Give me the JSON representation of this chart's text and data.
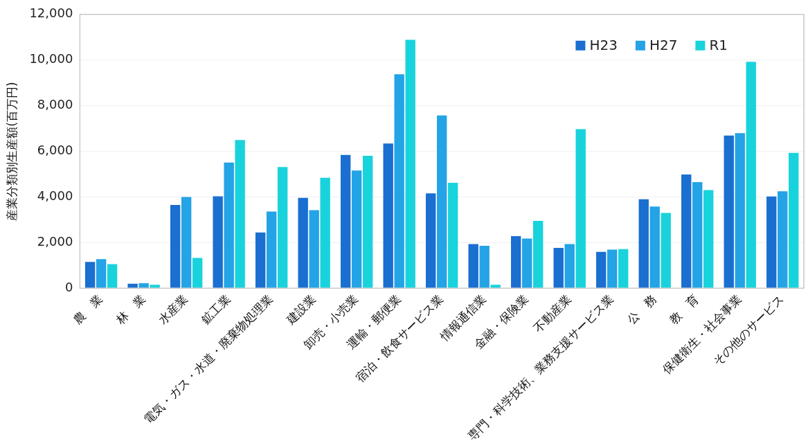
{
  "chart_data": {
    "type": "bar",
    "ylabel": "産業分類別生産額(百万円)",
    "categories": [
      "農　業",
      "林　業",
      "水産業",
      "鉱工業",
      "電気・ガス・水道・廃棄物処理業",
      "建設業",
      "卸売・小売業",
      "運輸・郵便業",
      "宿泊・飲食サービス業",
      "情報通信業",
      "金融・保険業",
      "不動産業",
      "専門・科学技術、業務支援サービス業",
      "公　務",
      "教　育",
      "保健衛生・社会事業",
      "その他のサービス"
    ],
    "series": [
      {
        "name": "H23",
        "color": "#1a6fd0",
        "values": [
          1150,
          200,
          3650,
          4030,
          2440,
          3960,
          5840,
          6340,
          4160,
          1930,
          2280,
          1770,
          1590,
          3900,
          4980,
          6690,
          4020
        ]
      },
      {
        "name": "H27",
        "color": "#24a3e6",
        "values": [
          1270,
          220,
          4000,
          5510,
          3360,
          3420,
          5160,
          9380,
          7570,
          1860,
          2180,
          1930,
          1690,
          3580,
          4650,
          6800,
          4250
        ]
      },
      {
        "name": "R1",
        "color": "#19d3dc",
        "values": [
          1050,
          150,
          1330,
          6490,
          5310,
          4840,
          5800,
          10890,
          4620,
          150,
          2950,
          6970,
          1710,
          3300,
          4300,
          9920,
          5930
        ]
      }
    ],
    "ylim": [
      0,
      12000
    ],
    "yticks": [
      {
        "value": 0,
        "label": "0"
      },
      {
        "value": 2000,
        "label": "2,000"
      },
      {
        "value": 4000,
        "label": "4,000"
      },
      {
        "value": 6000,
        "label": "6,000"
      },
      {
        "value": 8000,
        "label": "8,000"
      },
      {
        "value": 10000,
        "label": "10,000"
      },
      {
        "value": 12000,
        "label": "12,000"
      }
    ],
    "grid": "y",
    "legend": "top right"
  }
}
